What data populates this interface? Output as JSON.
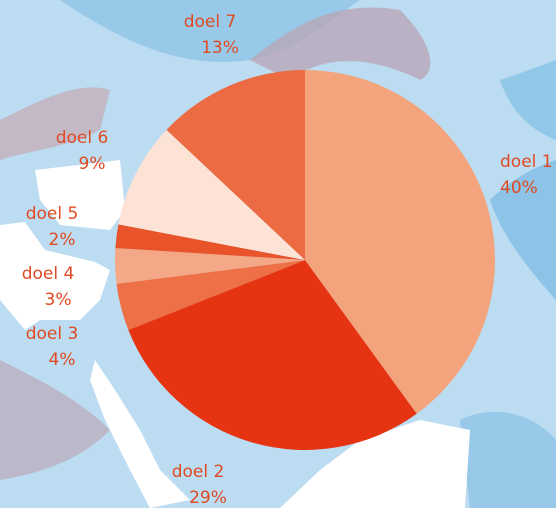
{
  "chart_data": {
    "type": "pie",
    "categories": [
      "doel 1",
      "doel 2",
      "doel 3",
      "doel 4",
      "doel 5",
      "doel 6",
      "doel 7"
    ],
    "values": [
      40,
      29,
      4,
      3,
      2,
      9,
      13
    ],
    "value_labels": [
      "40%",
      "29%",
      "4%",
      "3%",
      "2%",
      "9%",
      "13%"
    ],
    "colors": [
      "#f4a47d",
      "#e63312",
      "#ee7046",
      "#f5a887",
      "#e9542b",
      "#fde3d6",
      "#ec6b42"
    ],
    "label_color": "#e04a22"
  }
}
